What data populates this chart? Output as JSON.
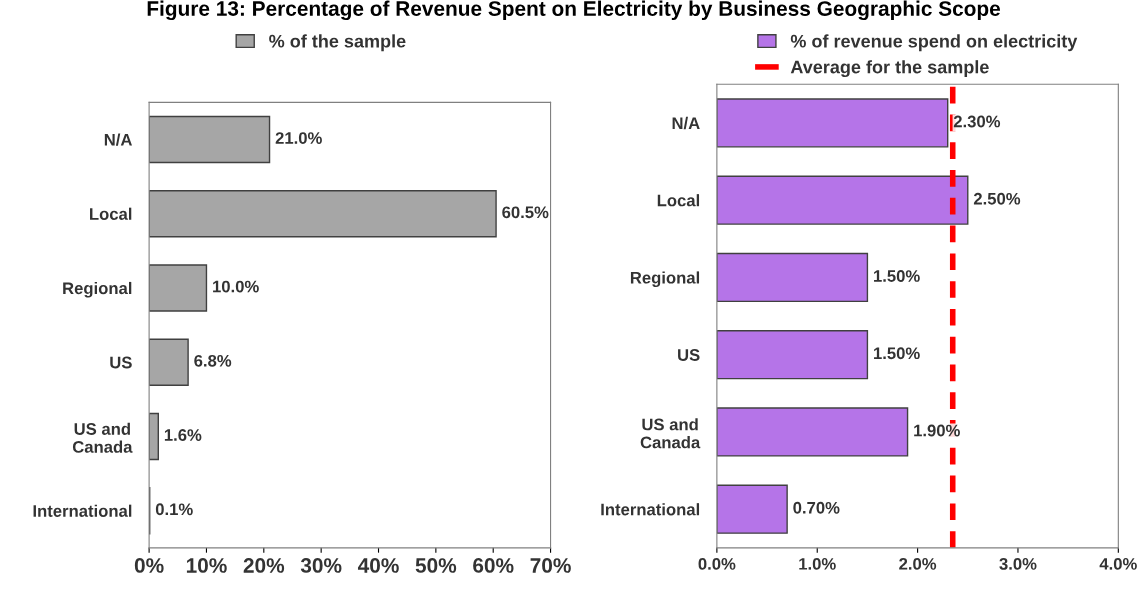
{
  "chart_data": [
    {
      "type": "bar",
      "orientation": "horizontal",
      "title": "Figure 13: Percentage of Revenue Spent on Electricity by Business Geographic Scope",
      "categories": [
        "N/A",
        "Local",
        "Regional",
        "US",
        "US and\nCanada",
        "International"
      ],
      "series": [
        {
          "name": "% of the sample",
          "color": "#a6a6a6",
          "values": [
            21.0,
            60.5,
            10.0,
            6.8,
            1.6,
            0.1
          ],
          "value_labels": [
            "21.0%",
            "60.5%",
            "10.0%",
            "6.8%",
            "1.6%",
            "0.1%"
          ]
        }
      ],
      "xlim": [
        0,
        70
      ],
      "xticks": [
        {
          "value": 0,
          "label": "0%"
        },
        {
          "value": 10,
          "label": "10%"
        },
        {
          "value": 20,
          "label": "20%"
        },
        {
          "value": 30,
          "label": "30%"
        },
        {
          "value": 40,
          "label": "40%"
        },
        {
          "value": 50,
          "label": "50%"
        },
        {
          "value": 60,
          "label": "60%"
        },
        {
          "value": 70,
          "label": "70%"
        }
      ],
      "grid": false,
      "legend": "top"
    },
    {
      "type": "bar",
      "orientation": "horizontal",
      "categories": [
        "N/A",
        "Local",
        "Regional",
        "US",
        "US and\nCanada",
        "International"
      ],
      "series": [
        {
          "name": "% of revenue spend on electricity",
          "color": "#b574e8",
          "values": [
            2.3,
            2.5,
            1.5,
            1.5,
            1.9,
            0.7
          ],
          "value_labels": [
            "2.30%",
            "2.50%",
            "1.50%",
            "1.50%",
            "1.90%",
            "0.70%"
          ]
        }
      ],
      "ref_lines": [
        {
          "axis": "x",
          "value": 2.35,
          "label": "Average for the sample",
          "color": "#ff0000",
          "line_style": "dashed"
        }
      ],
      "xlim": [
        0,
        4
      ],
      "xticks": [
        {
          "value": 0,
          "label": "0.0%"
        },
        {
          "value": 1,
          "label": "1.0%"
        },
        {
          "value": 2,
          "label": "2.0%"
        },
        {
          "value": 3,
          "label": "3.0%"
        },
        {
          "value": 4,
          "label": "4.0%"
        }
      ],
      "grid": false,
      "legend": "top right"
    }
  ]
}
